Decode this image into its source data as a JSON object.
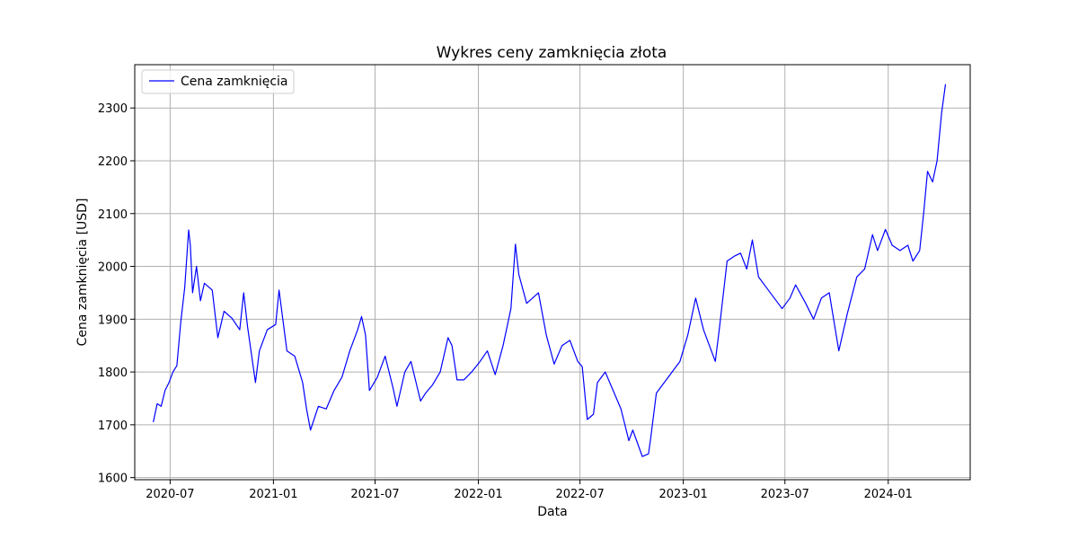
{
  "chart_data": {
    "type": "line",
    "title": "Wykres ceny zamknięcia złota",
    "xlabel": "Data",
    "ylabel": "Cena zamknięcia [USD]",
    "grid": true,
    "legend": {
      "placement": "top-left",
      "entries": [
        "Cena zamknięcia"
      ]
    },
    "x_range": [
      "2020-04-29",
      "2024-05-26"
    ],
    "ylim": [
      1596,
      2382
    ],
    "x_ticks": [
      "2020-07",
      "2021-01",
      "2021-07",
      "2022-01",
      "2022-07",
      "2023-01",
      "2023-07",
      "2024-01"
    ],
    "y_ticks": [
      1600,
      1700,
      1800,
      1900,
      2000,
      2100,
      2200,
      2300
    ],
    "series": [
      {
        "name": "Cena zamknięcia",
        "color": "#0000ff",
        "x": [
          "2020-06-01",
          "2020-06-08",
          "2020-06-15",
          "2020-06-22",
          "2020-06-29",
          "2020-07-06",
          "2020-07-13",
          "2020-07-20",
          "2020-07-27",
          "2020-08-03",
          "2020-08-06",
          "2020-08-10",
          "2020-08-17",
          "2020-08-24",
          "2020-08-31",
          "2020-09-14",
          "2020-09-24",
          "2020-10-05",
          "2020-10-19",
          "2020-11-02",
          "2020-11-09",
          "2020-11-16",
          "2020-11-30",
          "2020-12-07",
          "2020-12-21",
          "2021-01-05",
          "2021-01-11",
          "2021-01-25",
          "2021-02-08",
          "2021-02-22",
          "2021-03-01",
          "2021-03-08",
          "2021-03-22",
          "2021-04-05",
          "2021-04-19",
          "2021-05-03",
          "2021-05-17",
          "2021-05-31",
          "2021-06-07",
          "2021-06-14",
          "2021-06-21",
          "2021-07-05",
          "2021-07-19",
          "2021-08-02",
          "2021-08-09",
          "2021-08-23",
          "2021-09-03",
          "2021-09-20",
          "2021-09-29",
          "2021-10-11",
          "2021-10-25",
          "2021-11-08",
          "2021-11-15",
          "2021-11-24",
          "2021-12-06",
          "2021-12-20",
          "2022-01-04",
          "2022-01-17",
          "2022-01-31",
          "2022-02-14",
          "2022-02-28",
          "2022-03-08",
          "2022-03-14",
          "2022-03-28",
          "2022-04-18",
          "2022-05-02",
          "2022-05-16",
          "2022-05-30",
          "2022-06-13",
          "2022-06-27",
          "2022-07-05",
          "2022-07-14",
          "2022-07-25",
          "2022-08-01",
          "2022-08-15",
          "2022-08-29",
          "2022-09-12",
          "2022-09-26",
          "2022-10-03",
          "2022-10-20",
          "2022-10-31",
          "2022-11-04",
          "2022-11-14",
          "2022-11-28",
          "2022-12-12",
          "2022-12-26",
          "2023-01-09",
          "2023-01-23",
          "2023-02-06",
          "2023-02-27",
          "2023-03-06",
          "2023-03-20",
          "2023-04-03",
          "2023-04-13",
          "2023-04-24",
          "2023-05-04",
          "2023-05-15",
          "2023-05-29",
          "2023-06-12",
          "2023-06-26",
          "2023-07-10",
          "2023-07-20",
          "2023-08-07",
          "2023-08-21",
          "2023-09-04",
          "2023-09-18",
          "2023-10-05",
          "2023-10-20",
          "2023-11-06",
          "2023-11-20",
          "2023-12-04",
          "2023-12-13",
          "2023-12-27",
          "2024-01-08",
          "2024-01-22",
          "2024-02-05",
          "2024-02-14",
          "2024-02-26",
          "2024-03-04",
          "2024-03-11",
          "2024-03-20",
          "2024-03-28",
          "2024-04-05",
          "2024-04-12"
        ],
        "y": [
          1705,
          1740,
          1735,
          1765,
          1780,
          1800,
          1812,
          1895,
          1960,
          2069,
          2040,
          1950,
          2000,
          1935,
          1968,
          1955,
          1865,
          1915,
          1902,
          1880,
          1950,
          1885,
          1780,
          1840,
          1880,
          1890,
          1955,
          1840,
          1830,
          1780,
          1730,
          1690,
          1735,
          1730,
          1765,
          1790,
          1840,
          1880,
          1905,
          1870,
          1765,
          1790,
          1830,
          1770,
          1735,
          1800,
          1820,
          1745,
          1760,
          1775,
          1800,
          1865,
          1850,
          1785,
          1785,
          1800,
          1820,
          1840,
          1795,
          1850,
          1920,
          2042,
          1985,
          1930,
          1950,
          1870,
          1815,
          1850,
          1860,
          1820,
          1810,
          1710,
          1720,
          1780,
          1800,
          1765,
          1730,
          1670,
          1690,
          1640,
          1645,
          1675,
          1760,
          1780,
          1800,
          1820,
          1870,
          1940,
          1880,
          1820,
          1880,
          2010,
          2020,
          2025,
          1995,
          2050,
          1980,
          1960,
          1940,
          1920,
          1940,
          1965,
          1930,
          1900,
          1940,
          1950,
          1840,
          1910,
          1980,
          1995,
          2060,
          2030,
          2070,
          2040,
          2030,
          2040,
          2010,
          2030,
          2100,
          2180,
          2160,
          2200,
          2290,
          2345
        ]
      }
    ]
  }
}
